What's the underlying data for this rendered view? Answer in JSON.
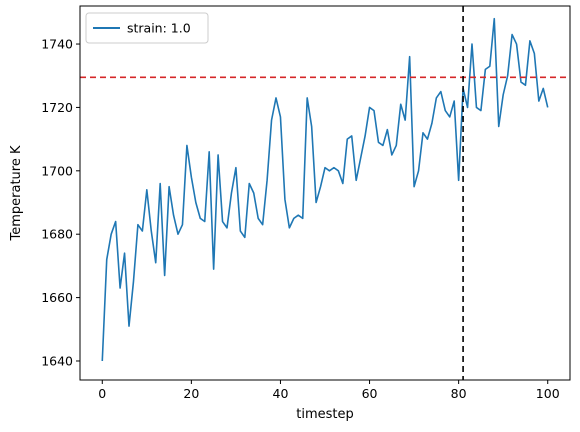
{
  "chart_data": {
    "type": "line",
    "xlabel": "timestep",
    "ylabel": "Temperature K",
    "xlim": [
      -5,
      105
    ],
    "ylim": [
      1634,
      1752
    ],
    "xticks": [
      0,
      20,
      40,
      60,
      80,
      100
    ],
    "yticks": [
      1640,
      1660,
      1680,
      1700,
      1720,
      1740
    ],
    "grid": false,
    "legend_position": "top-left",
    "series": [
      {
        "name": "strain: 1.0",
        "color": "#1f77b4",
        "x": [
          0,
          1,
          2,
          3,
          4,
          5,
          6,
          7,
          8,
          9,
          10,
          11,
          12,
          13,
          14,
          15,
          16,
          17,
          18,
          19,
          20,
          21,
          22,
          23,
          24,
          25,
          26,
          27,
          28,
          29,
          30,
          31,
          32,
          33,
          34,
          35,
          36,
          37,
          38,
          39,
          40,
          41,
          42,
          43,
          44,
          45,
          46,
          47,
          48,
          49,
          50,
          51,
          52,
          53,
          54,
          55,
          56,
          57,
          58,
          59,
          60,
          61,
          62,
          63,
          64,
          65,
          66,
          67,
          68,
          69,
          70,
          71,
          72,
          73,
          74,
          75,
          76,
          77,
          78,
          79,
          80,
          81,
          82,
          83,
          84,
          85,
          86,
          87,
          88,
          89,
          90,
          91,
          92,
          93,
          94,
          95,
          96,
          97,
          98,
          99,
          100
        ],
        "y": [
          1640,
          1672,
          1680,
          1684,
          1663,
          1674,
          1651,
          1665,
          1683,
          1681,
          1694,
          1681,
          1671,
          1696,
          1667,
          1695,
          1686,
          1680,
          1683,
          1708,
          1698,
          1690,
          1685,
          1684,
          1706,
          1669,
          1705,
          1684,
          1682,
          1693,
          1701,
          1681,
          1679,
          1696,
          1693,
          1685,
          1683,
          1697,
          1716,
          1723,
          1717,
          1691,
          1682,
          1685,
          1686,
          1685,
          1723,
          1714,
          1690,
          1695,
          1701,
          1700,
          1701,
          1700,
          1696,
          1710,
          1711,
          1697,
          1704,
          1711,
          1720,
          1719,
          1709,
          1708,
          1713,
          1705,
          1708,
          1721,
          1716,
          1736,
          1695,
          1700,
          1712,
          1710,
          1715,
          1723,
          1725,
          1719,
          1717,
          1722,
          1697,
          1726,
          1720,
          1740,
          1720,
          1719,
          1732,
          1733,
          1748,
          1714,
          1724,
          1730,
          1743,
          1740,
          1728,
          1727,
          1741,
          1737,
          1722,
          1726,
          1720
        ]
      }
    ],
    "reference_lines": [
      {
        "orientation": "horizontal",
        "value": 1729.5,
        "color": "#d62728",
        "style": "dashed"
      },
      {
        "orientation": "vertical",
        "value": 81,
        "color": "#000000",
        "style": "dashed"
      }
    ]
  }
}
